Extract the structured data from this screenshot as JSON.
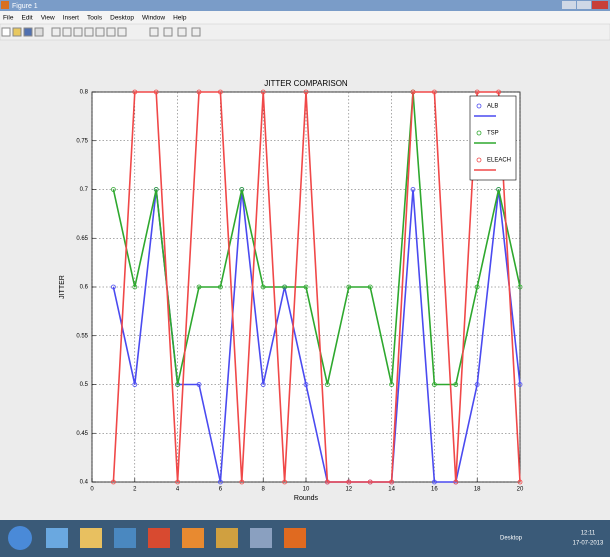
{
  "window": {
    "title": "Figure 1",
    "menu": [
      "File",
      "Edit",
      "View",
      "Insert",
      "Tools",
      "Desktop",
      "Window",
      "Help"
    ]
  },
  "taskbar": {
    "label": "Desktop",
    "time": "12:11",
    "date": "17-07-2013"
  },
  "chart_data": {
    "type": "line",
    "title": "JITTER COMPARISON",
    "xlabel": "Rounds",
    "ylabel": "JITTER",
    "x": [
      1,
      2,
      3,
      4,
      5,
      6,
      7,
      8,
      9,
      10,
      11,
      12,
      13,
      14,
      15,
      16,
      17,
      18,
      19,
      20
    ],
    "series": [
      {
        "name": "ALB",
        "color": "#4a4af0",
        "values": [
          0.6,
          0.5,
          0.7,
          0.5,
          0.5,
          0.4,
          0.7,
          0.5,
          0.6,
          0.5,
          0.4,
          0.4,
          0.4,
          0.4,
          0.7,
          0.4,
          0.4,
          0.5,
          0.7,
          0.5
        ]
      },
      {
        "name": "TSP",
        "color": "#2ea82e",
        "values": [
          0.7,
          0.6,
          0.7,
          0.5,
          0.6,
          0.6,
          0.7,
          0.6,
          0.6,
          0.6,
          0.5,
          0.6,
          0.6,
          0.5,
          0.8,
          0.5,
          0.5,
          0.6,
          0.7,
          0.6
        ]
      },
      {
        "name": "ELEACH",
        "color": "#f04848",
        "values": [
          0.4,
          0.8,
          0.8,
          0.4,
          0.8,
          0.8,
          0.4,
          0.8,
          0.4,
          0.8,
          0.4,
          0.4,
          0.4,
          0.4,
          0.8,
          0.8,
          0.4,
          0.8,
          0.8,
          0.4
        ]
      }
    ],
    "xlim": [
      0,
      20
    ],
    "xticks": [
      0,
      2,
      4,
      6,
      8,
      10,
      12,
      14,
      16,
      18,
      20
    ],
    "ylim": [
      0.4,
      0.8
    ],
    "yticks": [
      0.4,
      0.45,
      0.5,
      0.55,
      0.6,
      0.65,
      0.7,
      0.75,
      0.8
    ],
    "grid": true,
    "legend": "top-right"
  }
}
